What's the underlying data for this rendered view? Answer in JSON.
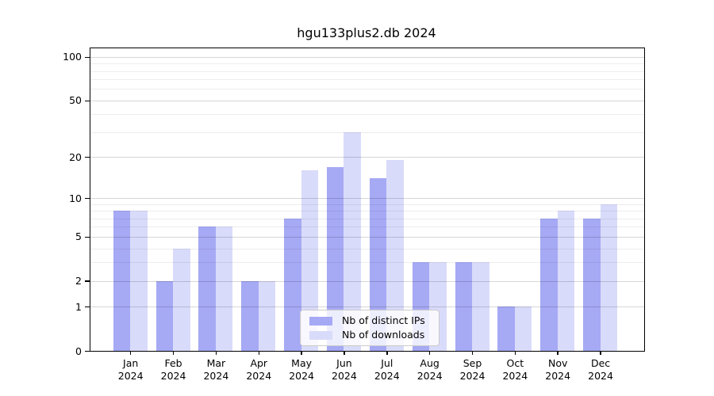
{
  "chart_data": {
    "type": "bar",
    "title": "hgu133plus2.db 2024",
    "categories": [
      "Jan",
      "Feb",
      "Mar",
      "Apr",
      "May",
      "Jun",
      "Jul",
      "Aug",
      "Sep",
      "Oct",
      "Nov",
      "Dec"
    ],
    "category_year": "2024",
    "series": [
      {
        "name": "Nb of distinct IPs",
        "color": "#a6a9f4",
        "values": [
          8,
          2,
          6,
          2,
          7,
          17,
          14,
          3,
          3,
          1,
          7,
          7
        ]
      },
      {
        "name": "Nb of downloads",
        "color": "#d9dbfa",
        "values": [
          8,
          4,
          6,
          2,
          16,
          30,
          19,
          3,
          3,
          1,
          8,
          9
        ]
      }
    ],
    "y_scale": "log10(1+value)",
    "ylim": [
      0,
      117
    ],
    "yticks": [
      0,
      1,
      2,
      5,
      10,
      20,
      50,
      100
    ],
    "minor_yticks": [
      3,
      4,
      6,
      7,
      8,
      9,
      30,
      40,
      60,
      70,
      80,
      90
    ],
    "grid": true,
    "legend_position": "bottom-center"
  }
}
